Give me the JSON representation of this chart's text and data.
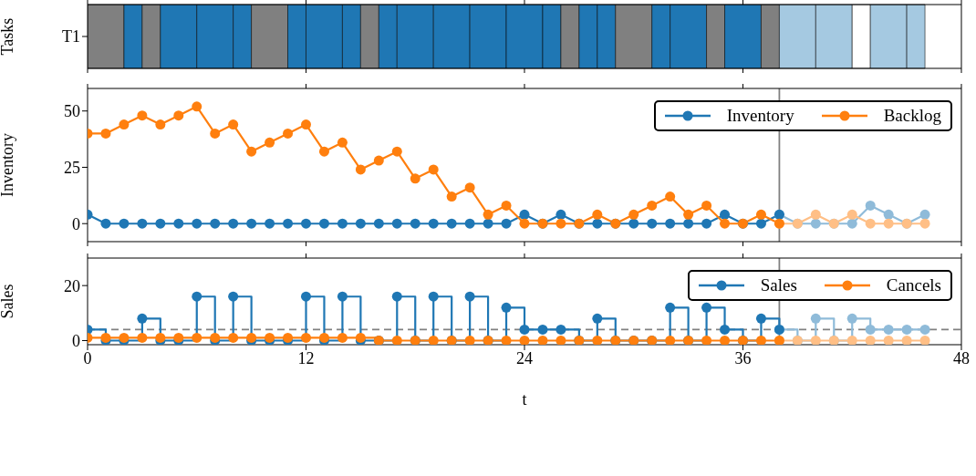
{
  "chart_data": [
    {
      "type": "bar",
      "orientation": "horizontal",
      "stacked": true,
      "ylabel": "Tasks",
      "categories": [
        "T1"
      ],
      "xlim": [
        0,
        48
      ],
      "xticks": [
        0,
        12,
        24,
        36,
        48
      ],
      "tick_labels": "y",
      "series": [
        {
          "color": "#808080",
          "values": [
            2
          ]
        },
        {
          "color": "#1f77b4",
          "values": [
            1
          ]
        },
        {
          "color": "#808080",
          "values": [
            1
          ]
        },
        {
          "color": "#1f77b4",
          "values": [
            2
          ]
        },
        {
          "color": "#1f77b4",
          "values": [
            2
          ]
        },
        {
          "color": "#1f77b4",
          "values": [
            1
          ]
        },
        {
          "color": "#808080",
          "values": [
            2
          ]
        },
        {
          "color": "#1f77b4",
          "values": [
            1
          ]
        },
        {
          "color": "#1f77b4",
          "values": [
            2
          ]
        },
        {
          "color": "#1f77b4",
          "values": [
            1
          ]
        },
        {
          "color": "#808080",
          "values": [
            1
          ]
        },
        {
          "color": "#1f77b4",
          "values": [
            1
          ]
        },
        {
          "color": "#1f77b4",
          "values": [
            2
          ]
        },
        {
          "color": "#1f77b4",
          "values": [
            2
          ]
        },
        {
          "color": "#1f77b4",
          "values": [
            2
          ]
        },
        {
          "color": "#1f77b4",
          "values": [
            2
          ]
        },
        {
          "color": "#1f77b4",
          "values": [
            1
          ]
        },
        {
          "color": "#808080",
          "values": [
            1
          ]
        },
        {
          "color": "#1f77b4",
          "values": [
            1
          ]
        },
        {
          "color": "#1f77b4",
          "values": [
            1
          ]
        },
        {
          "color": "#808080",
          "values": [
            2
          ]
        },
        {
          "color": "#1f77b4",
          "values": [
            1
          ]
        },
        {
          "color": "#1f77b4",
          "values": [
            2
          ]
        },
        {
          "color": "#808080",
          "values": [
            1
          ]
        },
        {
          "color": "#1f77b4",
          "values": [
            2
          ]
        },
        {
          "color": "#808080",
          "values": [
            1
          ]
        },
        {
          "color": "#a5c9e1",
          "values": [
            2
          ]
        },
        {
          "color": "#a5c9e1",
          "values": [
            2
          ]
        },
        {
          "color": "#ffffff",
          "values": [
            1
          ]
        },
        {
          "color": "#a5c9e1",
          "values": [
            2
          ]
        },
        {
          "color": "#a5c9e1",
          "values": [
            1
          ]
        }
      ]
    },
    {
      "type": "line",
      "ylabel": "Inventory",
      "xlim": [
        0,
        48
      ],
      "xticks": [
        0,
        12,
        24,
        36,
        48
      ],
      "ylim": [
        -8,
        60
      ],
      "yticks": [
        0,
        25,
        50
      ],
      "tick_labels": "y",
      "marker": "circle",
      "legend": "top right",
      "ref_lines": [
        {
          "axis": "x",
          "value": 38,
          "color": "#808080"
        }
      ],
      "series": [
        {
          "name": "Inventory",
          "color": "#1f77b4",
          "x": [
            0,
            1,
            2,
            3,
            4,
            5,
            6,
            7,
            8,
            9,
            10,
            11,
            12,
            13,
            14,
            15,
            16,
            17,
            18,
            19,
            20,
            21,
            22,
            23,
            24,
            25,
            26,
            27,
            28,
            29,
            30,
            31,
            32,
            33,
            34,
            35,
            36,
            37,
            38
          ],
          "values": [
            4,
            0,
            0,
            0,
            0,
            0,
            0,
            0,
            0,
            0,
            0,
            0,
            0,
            0,
            0,
            0,
            0,
            0,
            0,
            0,
            0,
            0,
            0,
            0,
            4,
            0,
            4,
            0,
            0,
            0,
            0,
            0,
            0,
            0,
            0,
            4,
            0,
            0,
            4
          ]
        },
        {
          "name": "Backlog",
          "color": "#ff7f0e",
          "x": [
            0,
            1,
            2,
            3,
            4,
            5,
            6,
            7,
            8,
            9,
            10,
            11,
            12,
            13,
            14,
            15,
            16,
            17,
            18,
            19,
            20,
            21,
            22,
            23,
            24,
            25,
            26,
            27,
            28,
            29,
            30,
            31,
            32,
            33,
            34,
            35,
            36,
            37,
            38
          ],
          "values": [
            40,
            40,
            44,
            48,
            44,
            48,
            52,
            40,
            44,
            32,
            36,
            40,
            44,
            32,
            36,
            24,
            28,
            32,
            20,
            24,
            12,
            16,
            4,
            8,
            0,
            0,
            0,
            0,
            4,
            0,
            4,
            8,
            12,
            4,
            8,
            0,
            0,
            4,
            0
          ]
        },
        {
          "color": "#8fbbd9",
          "x": [
            38,
            39,
            40,
            41,
            42,
            43,
            44,
            45,
            46
          ],
          "values": [
            4,
            0,
            0,
            0,
            0,
            8,
            4,
            0,
            4
          ]
        },
        {
          "color": "#ffbf86",
          "x": [
            38,
            39,
            40,
            41,
            42,
            43,
            44,
            45,
            46
          ],
          "values": [
            0,
            0,
            4,
            0,
            4,
            0,
            0,
            0,
            0
          ]
        }
      ]
    },
    {
      "type": "step",
      "xlabel": "t",
      "ylabel": "Sales",
      "xlim": [
        0,
        48
      ],
      "xticks": [
        0,
        12,
        24,
        36,
        48
      ],
      "ylim": [
        -1.5,
        30
      ],
      "yticks": [
        0,
        20
      ],
      "marker": "circle",
      "legend": "top right",
      "ref_lines": [
        {
          "axis": "y",
          "value": 4,
          "color": "#808080",
          "line_style": "dashed"
        },
        {
          "axis": "x",
          "value": 38,
          "color": "#808080"
        }
      ],
      "series": [
        {
          "name": "Sales",
          "color": "#1f77b4",
          "x": [
            0,
            1,
            2,
            3,
            4,
            5,
            6,
            7,
            8,
            9,
            10,
            11,
            12,
            13,
            14,
            15,
            16,
            17,
            18,
            19,
            20,
            21,
            22,
            23,
            24,
            25,
            26,
            27,
            28,
            29,
            30,
            31,
            32,
            33,
            34,
            35,
            36,
            37,
            38
          ],
          "values": [
            4,
            0,
            0,
            8,
            0,
            0,
            16,
            0,
            16,
            0,
            0,
            0,
            16,
            0,
            16,
            0,
            0,
            16,
            0,
            16,
            0,
            16,
            0,
            12,
            4,
            4,
            4,
            0,
            8,
            0,
            0,
            0,
            12,
            0,
            12,
            4,
            0,
            8,
            4
          ]
        },
        {
          "name": "Cancels",
          "color": "#ff7f0e",
          "x": [
            0,
            1,
            2,
            3,
            4,
            5,
            6,
            7,
            8,
            9,
            10,
            11,
            12,
            13,
            14,
            15,
            16,
            17,
            18,
            19,
            20,
            21,
            22,
            23,
            24,
            25,
            26,
            27,
            28,
            29,
            30,
            31,
            32,
            33,
            34,
            35,
            36,
            37,
            38
          ],
          "values": [
            1,
            1,
            1,
            1,
            1,
            1,
            1,
            1,
            1,
            1,
            1,
            1,
            1,
            1,
            1,
            1,
            0,
            0,
            0,
            0,
            0,
            0,
            0,
            0,
            0,
            0,
            0,
            0,
            0,
            0,
            0,
            0,
            0,
            0,
            0,
            0,
            0,
            0,
            0
          ]
        },
        {
          "color": "#8fbbd9",
          "x": [
            38,
            39,
            40,
            41,
            42,
            43,
            44,
            45,
            46
          ],
          "values": [
            4,
            0,
            8,
            0,
            8,
            4,
            4,
            4,
            4
          ]
        },
        {
          "color": "#ffbf86",
          "x": [
            38,
            39,
            40,
            41,
            42,
            43,
            44,
            45,
            46
          ],
          "values": [
            0,
            0,
            0,
            0,
            0,
            0,
            0,
            0,
            0
          ]
        }
      ]
    }
  ]
}
